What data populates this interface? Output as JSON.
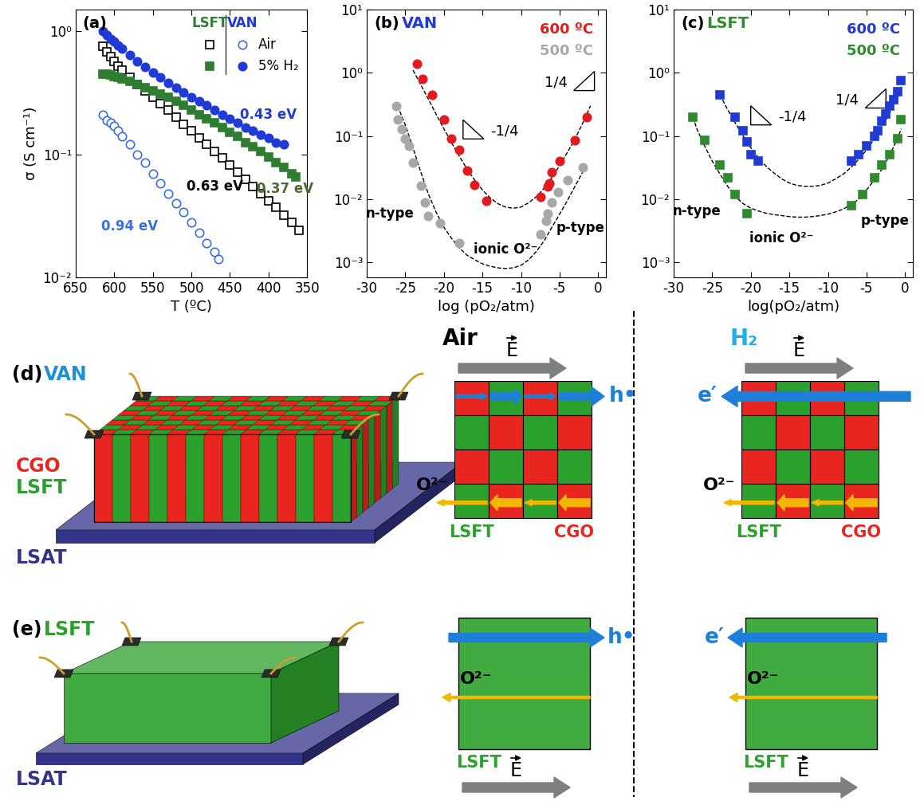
{
  "chart_data": [
    {
      "type": "scatter",
      "title": "(a)",
      "x_label": "T (ºC)",
      "y_label": "σ (S cm⁻¹)",
      "log": "y",
      "xlim": [
        650,
        350
      ],
      "xticks": [
        650,
        600,
        550,
        500,
        450,
        400,
        350
      ],
      "ylim": [
        0.01,
        1.5
      ],
      "yticks": [
        {
          "value": 0.01,
          "label": "10⁻²"
        },
        {
          "value": 0.1,
          "label": "10⁻¹"
        },
        {
          "value": 1,
          "label": "10⁰"
        }
      ],
      "legend": "upper right",
      "legend_table": {
        "columns": [
          "LSFT",
          "VAN"
        ],
        "colors": [
          "#2e7d32",
          "#1f3bd4"
        ],
        "rows": [
          "Air",
          "5% H₂"
        ]
      },
      "series": [
        {
          "group": "LSFT",
          "condition": "Air",
          "color": "#000000",
          "marker": "open square",
          "x": [
            615,
            610,
            605,
            600,
            595,
            590,
            580,
            570,
            560,
            550,
            540,
            530,
            520,
            510,
            500,
            490,
            480,
            470,
            460,
            450,
            440,
            430,
            420,
            410,
            400,
            390,
            380,
            370,
            360
          ],
          "values": [
            0.75,
            0.68,
            0.62,
            0.57,
            0.52,
            0.48,
            0.42,
            0.37,
            0.33,
            0.29,
            0.26,
            0.23,
            0.2,
            0.175,
            0.155,
            0.135,
            0.12,
            0.105,
            0.093,
            0.082,
            0.072,
            0.063,
            0.055,
            0.048,
            0.042,
            0.037,
            0.032,
            0.028,
            0.024
          ]
        },
        {
          "group": "LSFT",
          "condition": "5% H₂",
          "color": "#2e7d32",
          "marker": "square",
          "x": [
            615,
            610,
            605,
            600,
            595,
            590,
            580,
            570,
            560,
            550,
            540,
            530,
            520,
            510,
            500,
            490,
            480,
            470,
            460,
            450,
            440,
            430,
            420,
            410,
            400,
            390,
            380,
            370,
            365
          ],
          "values": [
            0.45,
            0.45,
            0.44,
            0.43,
            0.42,
            0.41,
            0.39,
            0.37,
            0.35,
            0.33,
            0.31,
            0.29,
            0.27,
            0.25,
            0.23,
            0.21,
            0.195,
            0.18,
            0.165,
            0.15,
            0.14,
            0.125,
            0.115,
            0.105,
            0.095,
            0.085,
            0.078,
            0.07,
            0.065
          ]
        },
        {
          "group": "VAN",
          "condition": "Air",
          "color": "#3c6ee0",
          "marker": "open circle",
          "x": [
            615,
            610,
            605,
            600,
            595,
            590,
            580,
            570,
            560,
            550,
            540,
            530,
            520,
            510,
            500,
            490,
            480,
            470,
            465
          ],
          "values": [
            0.21,
            0.19,
            0.18,
            0.17,
            0.155,
            0.14,
            0.12,
            0.1,
            0.085,
            0.07,
            0.058,
            0.048,
            0.04,
            0.034,
            0.028,
            0.023,
            0.019,
            0.016,
            0.014
          ]
        },
        {
          "group": "VAN",
          "condition": "5% H₂",
          "color": "#1f3bd4",
          "marker": "circle",
          "x": [
            615,
            610,
            605,
            600,
            595,
            590,
            580,
            570,
            560,
            550,
            540,
            530,
            520,
            510,
            500,
            490,
            480,
            470,
            460,
            450,
            440,
            430,
            420,
            410,
            400,
            390,
            380
          ],
          "values": [
            1.0,
            0.93,
            0.87,
            0.82,
            0.77,
            0.72,
            0.64,
            0.57,
            0.51,
            0.46,
            0.42,
            0.38,
            0.35,
            0.32,
            0.29,
            0.27,
            0.25,
            0.23,
            0.21,
            0.195,
            0.18,
            0.165,
            0.155,
            0.145,
            0.135,
            0.125,
            0.12
          ]
        }
      ],
      "annotations": [
        {
          "text": "0.43 eV",
          "x": 400,
          "y": 0.21,
          "color": "#1f3bd4"
        },
        {
          "text": "0.37 eV",
          "x": 378,
          "y": 0.052,
          "color": "#4b6b2f"
        },
        {
          "text": "0.63 eV",
          "x": 470,
          "y": 0.055,
          "color": "#000000"
        },
        {
          "text": "0.94 eV",
          "x": 580,
          "y": 0.026,
          "color": "#3c6ee0"
        }
      ]
    },
    {
      "type": "scatter",
      "title": "(b)",
      "subtitle": {
        "text": "VAN",
        "color": "#1f3bd4"
      },
      "x_label": "log (pO₂/atm)",
      "log": "y",
      "xlim": [
        -30,
        1
      ],
      "xticks": [
        -30,
        -25,
        -20,
        -15,
        -10,
        -5,
        0
      ],
      "ylim": [
        0.00058,
        10
      ],
      "yticks": [
        {
          "value": 0.001,
          "label": "10⁻³"
        },
        {
          "value": 0.01,
          "label": "10⁻²"
        },
        {
          "value": 0.1,
          "label": "10⁻¹"
        },
        {
          "value": 1,
          "label": "10⁰"
        },
        {
          "value": 10,
          "label": "10¹"
        }
      ],
      "legend": "upper right",
      "series": [
        {
          "name": "600 ºC",
          "color": "#e41a1c",
          "marker": "circle",
          "x": [
            -23.5,
            -22.8,
            -21.5,
            -20,
            -19,
            -18,
            -17,
            -16,
            -14.5,
            -7.5,
            -6.5,
            -6.3,
            -6,
            -5,
            -3,
            -1.5
          ],
          "values": [
            1.4,
            0.8,
            0.45,
            0.18,
            0.09,
            0.06,
            0.028,
            0.017,
            0.0095,
            0.011,
            0.016,
            0.018,
            0.027,
            0.04,
            0.085,
            0.2
          ]
        },
        {
          "name": "500 ºC",
          "color": "#a8a8a8",
          "marker": "circle",
          "x": [
            -26.2,
            -26,
            -25.5,
            -25,
            -24.5,
            -24,
            -23,
            -22.5,
            -22,
            -20.5,
            -18,
            -7.5,
            -6.8,
            -6.5,
            -6,
            -5.2,
            -4,
            -2
          ],
          "values": [
            0.3,
            0.18,
            0.13,
            0.09,
            0.07,
            0.038,
            0.0165,
            0.009,
            0.0055,
            0.0042,
            0.002,
            0.0028,
            0.0045,
            0.006,
            0.009,
            0.013,
            0.02,
            0.032
          ]
        },
        {
          "type": "line",
          "line_style": "dashed",
          "color": "#000000",
          "x": [
            -24,
            -23,
            -22,
            -21,
            -20,
            -19,
            -18,
            -17,
            -16,
            -15,
            -14,
            -13,
            -12,
            -11,
            -10,
            -9,
            -8,
            -7,
            -6,
            -5,
            -4,
            -3,
            -2,
            -1
          ],
          "values": [
            1.1,
            0.65,
            0.38,
            0.22,
            0.13,
            0.078,
            0.048,
            0.03,
            0.02,
            0.014,
            0.0105,
            0.0085,
            0.0075,
            0.0072,
            0.0075,
            0.0088,
            0.011,
            0.015,
            0.022,
            0.034,
            0.055,
            0.09,
            0.16,
            0.3
          ]
        },
        {
          "type": "line",
          "line_style": "dashed",
          "color": "#000000",
          "x": [
            -26,
            -25,
            -24,
            -23,
            -22,
            -21,
            -20,
            -19,
            -18,
            -17,
            -16,
            -15,
            -14,
            -13,
            -12,
            -11,
            -10,
            -9,
            -8,
            -7,
            -6,
            -5,
            -4,
            -3,
            -2,
            -1.5
          ],
          "values": [
            0.3,
            0.15,
            0.065,
            0.027,
            0.012,
            0.0062,
            0.0036,
            0.0024,
            0.0017,
            0.0013,
            0.0011,
            0.00095,
            0.00087,
            0.00082,
            0.0008,
            0.00082,
            0.0009,
            0.0011,
            0.0015,
            0.0022,
            0.0036,
            0.0058,
            0.0095,
            0.016,
            0.027,
            0.036
          ]
        }
      ],
      "annotations": [
        {
          "text": "n-type",
          "x": -27,
          "y": 0.006
        },
        {
          "text": "ionic O²⁻",
          "x": -12,
          "y": 0.0016
        },
        {
          "text": "p-type",
          "x": -2.3,
          "y": 0.0035
        },
        {
          "text": "-1/4",
          "x": -14,
          "y": 0.12,
          "type": "slope"
        },
        {
          "text": "1/4",
          "x": -4,
          "y": 0.7,
          "type": "slope"
        }
      ]
    },
    {
      "type": "scatter",
      "title": "(c)",
      "subtitle": {
        "text": "LSFT",
        "color": "#2e8b2e"
      },
      "x_label": "log(pO₂/atm)",
      "log": "y",
      "xlim": [
        -30,
        1
      ],
      "xticks": [
        -30,
        -25,
        -20,
        -15,
        -10,
        -5,
        0
      ],
      "ylim": [
        0.00058,
        10
      ],
      "yticks": [
        {
          "value": 0.001,
          "label": "10⁻³"
        },
        {
          "value": 0.01,
          "label": "10⁻²"
        },
        {
          "value": 0.1,
          "label": "10⁻¹"
        },
        {
          "value": 1,
          "label": "10⁰"
        },
        {
          "value": 10,
          "label": "10¹"
        }
      ],
      "legend": "upper right",
      "series": [
        {
          "name": "600 ºC",
          "color": "#1f3bd4",
          "marker": "square",
          "x": [
            -24,
            -22,
            -21,
            -20.5,
            -20,
            -19,
            -7,
            -6,
            -5,
            -4,
            -3.5,
            -3,
            -2.5,
            -2,
            -1.5,
            -1,
            -0.5
          ],
          "values": [
            0.45,
            0.2,
            0.12,
            0.08,
            0.05,
            0.04,
            0.04,
            0.05,
            0.07,
            0.1,
            0.12,
            0.17,
            0.22,
            0.3,
            0.38,
            0.5,
            0.75
          ]
        },
        {
          "name": "500 ºC",
          "color": "#2e8b2e",
          "marker": "square",
          "x": [
            -27.5,
            -26,
            -24,
            -23,
            -22,
            -20.5,
            -7,
            -5.5,
            -4,
            -3,
            -2,
            -1,
            -0.5
          ],
          "values": [
            0.2,
            0.085,
            0.035,
            0.022,
            0.012,
            0.006,
            0.008,
            0.012,
            0.022,
            0.035,
            0.05,
            0.09,
            0.18
          ]
        },
        {
          "type": "line",
          "line_style": "dashed",
          "color": "#000000",
          "x": [
            -24,
            -23,
            -22,
            -21,
            -20,
            -19,
            -18,
            -17,
            -16,
            -15,
            -14,
            -13,
            -12,
            -11,
            -10,
            -9,
            -8,
            -7,
            -6,
            -5,
            -4,
            -3,
            -2,
            -1,
            -0.5
          ],
          "values": [
            0.45,
            0.26,
            0.16,
            0.1,
            0.065,
            0.045,
            0.033,
            0.026,
            0.021,
            0.018,
            0.0165,
            0.016,
            0.016,
            0.0165,
            0.018,
            0.021,
            0.025,
            0.032,
            0.043,
            0.06,
            0.09,
            0.14,
            0.23,
            0.4,
            0.6
          ]
        },
        {
          "type": "line",
          "line_style": "dashed",
          "color": "#000000",
          "x": [
            -27.5,
            -27,
            -26,
            -25,
            -24,
            -23,
            -22,
            -21,
            -20,
            -19,
            -18,
            -17,
            -16,
            -15,
            -14,
            -13,
            -12,
            -11,
            -10,
            -9,
            -8,
            -7,
            -6,
            -5,
            -4,
            -3,
            -2,
            -1,
            -0.5
          ],
          "values": [
            0.2,
            0.13,
            0.07,
            0.04,
            0.025,
            0.016,
            0.011,
            0.0085,
            0.0072,
            0.0065,
            0.006,
            0.0057,
            0.0055,
            0.0053,
            0.0052,
            0.0052,
            0.0053,
            0.0055,
            0.0058,
            0.0063,
            0.007,
            0.0082,
            0.01,
            0.014,
            0.02,
            0.03,
            0.05,
            0.09,
            0.13
          ]
        }
      ],
      "annotations": [
        {
          "text": "n-type",
          "x": -27,
          "y": 0.0065
        },
        {
          "text": "ionic O²⁻",
          "x": -16,
          "y": 0.0024
        },
        {
          "text": "p-type",
          "x": -2.6,
          "y": 0.0045
        },
        {
          "text": "-1/4",
          "x": -16.5,
          "y": 0.2,
          "type": "slope"
        },
        {
          "text": "1/4",
          "x": -6,
          "y": 0.37,
          "type": "slope"
        }
      ]
    }
  ],
  "diagram": {
    "panel_d": {
      "label": "(d)",
      "title": "VAN",
      "color": "#1f8fd6",
      "phases": [
        {
          "name": "CGO",
          "color": "#e8261f"
        },
        {
          "name": "LSFT",
          "color": "#2ca02c"
        }
      ],
      "substrate": {
        "name": "LSAT",
        "color": "#34348a"
      }
    },
    "panel_e": {
      "label": "(e)",
      "title": "LSFT",
      "color": "#2ca02c",
      "substrate": {
        "name": "LSAT",
        "color": "#34348a"
      }
    },
    "conditions": [
      {
        "name": "Air",
        "color": "#000000",
        "field": "E",
        "carrier": "h•",
        "ion": "O²⁻",
        "carrier_direction": "right"
      },
      {
        "name": "H₂",
        "color": "#22aee8",
        "field": "E",
        "carrier": "e′",
        "ion": "O²⁻",
        "carrier_direction": "left"
      }
    ]
  }
}
